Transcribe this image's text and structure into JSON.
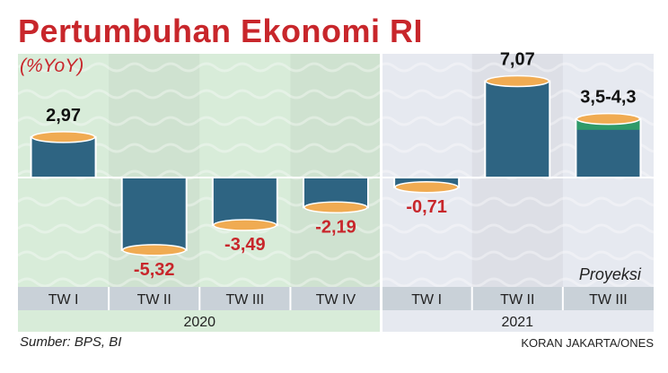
{
  "title": "Pertumbuhan Ekonomi RI",
  "subtitle": "(%YoY)",
  "projection_label": "Proyeksi",
  "source": "Sumber: BPS, BI",
  "credit": "KORAN JAKARTA/ONES",
  "colors": {
    "title": "#c8262b",
    "bar": "#2e6482",
    "bar_cap": "#f0ab52",
    "projection_band": "#2e9a6a",
    "negative_label": "#c8262b",
    "positive_label": "#111111",
    "panel_2020": "#d8ecd9",
    "panel_2021": "#e6e9f0"
  },
  "chart_data": {
    "type": "bar",
    "title": "Pertumbuhan Ekonomi RI",
    "ylabel": "(%YoY)",
    "xlabel": "",
    "categories": [
      "TW I",
      "TW II",
      "TW III",
      "TW IV",
      "TW I",
      "TW II",
      "TW III"
    ],
    "groups": [
      {
        "label": "2020",
        "categories": [
          "TW I",
          "TW II",
          "TW III",
          "TW IV"
        ]
      },
      {
        "label": "2021",
        "categories": [
          "TW I",
          "TW II",
          "TW III"
        ]
      }
    ],
    "values": [
      2.97,
      -5.32,
      -3.49,
      -2.19,
      -0.71,
      7.07,
      4.3
    ],
    "value_labels": [
      "2,97",
      "-5,32",
      "-3,49",
      "-2,19",
      "-0,71",
      "7,07",
      "3,5-4,3"
    ],
    "projection": {
      "category_index": 6,
      "range": [
        3.5,
        4.3
      ]
    },
    "ylim": [
      -6,
      7.5
    ],
    "grid": false
  }
}
